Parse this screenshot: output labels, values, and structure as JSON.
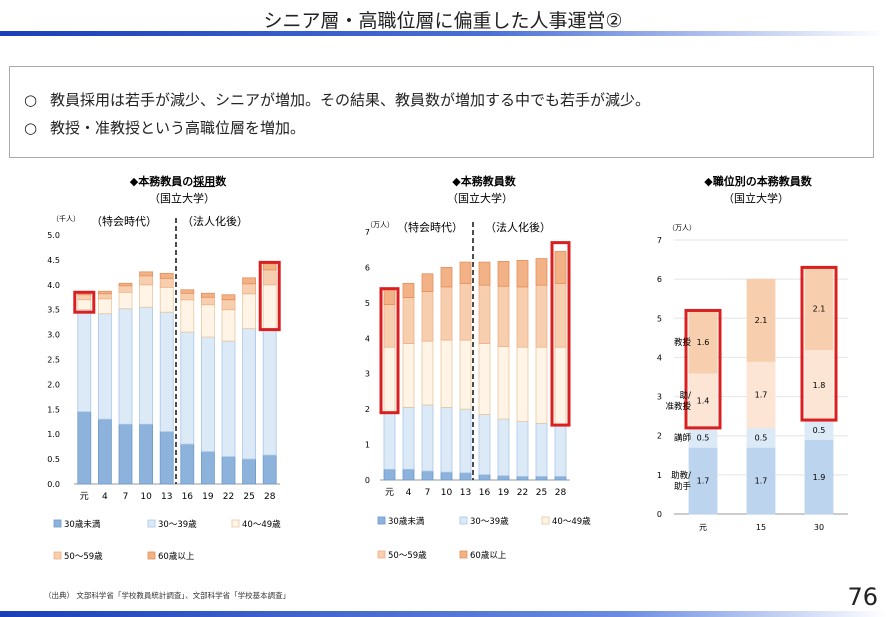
{
  "title": "シニア層・高職位層に偏重した人事運営②",
  "notes": [
    "教員採用は若手が減少、シニアが増加。その結果、教員数が増加する中でも若手が減少。",
    "教授・准教授という高職位層を増加。"
  ],
  "source": "（出典） 文部科学省「学校教員統計調査」、文部科学省「学校基本調査」",
  "page_number": "76",
  "colors": {
    "age30": "#8db3dd",
    "age3039": "#dce9f6",
    "age4049": "#fff4e5",
    "age5059": "#f8cfae",
    "age60": "#f3b285",
    "highlight": "#d91f1f"
  },
  "chart_data": [
    {
      "type": "bar",
      "stacked": true,
      "title_prefix": "◆本務教員の",
      "title_underlined": "採用",
      "title_suffix": "数",
      "subtitle": "（国立大学）",
      "unit": "（千人）",
      "era_labels": [
        "（特会時代）",
        "（法人化後）"
      ],
      "categories": [
        "元",
        "4",
        "7",
        "10",
        "13",
        "16",
        "19",
        "22",
        "25",
        "28"
      ],
      "ylim": [
        0,
        5.0
      ],
      "yticks": [
        "0.0",
        "0.5",
        "1.0",
        "1.5",
        "2.0",
        "2.5",
        "3.0",
        "3.5",
        "4.0",
        "4.5",
        "5.0"
      ],
      "series": [
        {
          "name": "30歳未満",
          "values": [
            1.45,
            1.3,
            1.2,
            1.2,
            1.05,
            0.8,
            0.65,
            0.55,
            0.5,
            0.58
          ]
        },
        {
          "name": "30～39歳",
          "values": [
            2.05,
            2.12,
            2.32,
            2.35,
            2.4,
            2.25,
            2.3,
            2.32,
            2.62,
            2.52
          ]
        },
        {
          "name": "40～49歳",
          "values": [
            0.2,
            0.3,
            0.33,
            0.45,
            0.5,
            0.65,
            0.65,
            0.63,
            0.7,
            0.9
          ]
        },
        {
          "name": "50～59歳",
          "values": [
            0.1,
            0.1,
            0.13,
            0.18,
            0.18,
            0.13,
            0.15,
            0.2,
            0.2,
            0.3
          ]
        },
        {
          "name": "60歳以上",
          "values": [
            0.05,
            0.05,
            0.05,
            0.08,
            0.1,
            0.07,
            0.08,
            0.1,
            0.12,
            0.12
          ]
        }
      ],
      "highlights": [
        {
          "index": 0,
          "from": 3.45,
          "to": 3.85
        },
        {
          "index": 9,
          "from": 3.1,
          "to": 4.45
        }
      ]
    },
    {
      "type": "bar",
      "stacked": true,
      "title": "◆本務教員数",
      "subtitle": "（国立大学）",
      "unit": "（万人）",
      "era_labels": [
        "（特会時代）",
        "（法人化後）"
      ],
      "categories": [
        "元",
        "4",
        "7",
        "10",
        "13",
        "16",
        "19",
        "22",
        "25",
        "28"
      ],
      "ylim": [
        0,
        7
      ],
      "yticks": [
        "0",
        "1",
        "2",
        "3",
        "4",
        "5",
        "6",
        "7"
      ],
      "series": [
        {
          "name": "30歳未満",
          "values": [
            0.3,
            0.3,
            0.25,
            0.22,
            0.2,
            0.15,
            0.12,
            0.1,
            0.1,
            0.1
          ]
        },
        {
          "name": "30～39歳",
          "values": [
            1.6,
            1.75,
            1.87,
            1.83,
            1.8,
            1.7,
            1.6,
            1.55,
            1.5,
            1.45
          ]
        },
        {
          "name": "40～49歳",
          "values": [
            1.85,
            1.8,
            1.8,
            1.9,
            1.95,
            2.0,
            2.05,
            2.1,
            2.15,
            2.2
          ]
        },
        {
          "name": "50～59歳",
          "values": [
            1.2,
            1.3,
            1.4,
            1.5,
            1.6,
            1.65,
            1.7,
            1.7,
            1.75,
            1.8
          ]
        },
        {
          "name": "60歳以上",
          "values": [
            0.45,
            0.4,
            0.5,
            0.55,
            0.6,
            0.65,
            0.7,
            0.75,
            0.75,
            0.9
          ]
        }
      ],
      "highlights": [
        {
          "index": 0,
          "from": 1.9,
          "to": 5.4
        },
        {
          "index": 9,
          "from": 1.55,
          "to": 6.7
        }
      ]
    },
    {
      "type": "bar",
      "stacked": true,
      "title": "◆職位別の本務教員数",
      "subtitle": "（国立大学）",
      "unit": "（万人）",
      "categories": [
        "元",
        "15",
        "30"
      ],
      "ylim": [
        0,
        7
      ],
      "yticks": [
        "0",
        "1",
        "2",
        "3",
        "4",
        "5",
        "6",
        "7"
      ],
      "series": [
        {
          "name": "助教/助手",
          "label": "助教/\n助手",
          "values": [
            1.7,
            1.7,
            1.9
          ]
        },
        {
          "name": "講師",
          "label": "講師",
          "values": [
            0.5,
            0.5,
            0.5
          ]
        },
        {
          "name": "准教授",
          "label": "助/\n准教授",
          "values": [
            1.4,
            1.7,
            1.8
          ]
        },
        {
          "name": "教授",
          "label": "教授",
          "values": [
            1.6,
            2.1,
            2.1
          ]
        }
      ],
      "data_labels": [
        [
          "1.7",
          "0.5",
          "1.4",
          "1.6"
        ],
        [
          "1.7",
          "0.5",
          "1.7",
          "2.1"
        ],
        [
          "1.9",
          "0.5",
          "1.8",
          "2.1"
        ]
      ],
      "highlights": [
        {
          "index": 0,
          "from": 2.2,
          "to": 5.2
        },
        {
          "index": 2,
          "from": 2.4,
          "to": 6.3
        }
      ]
    }
  ]
}
